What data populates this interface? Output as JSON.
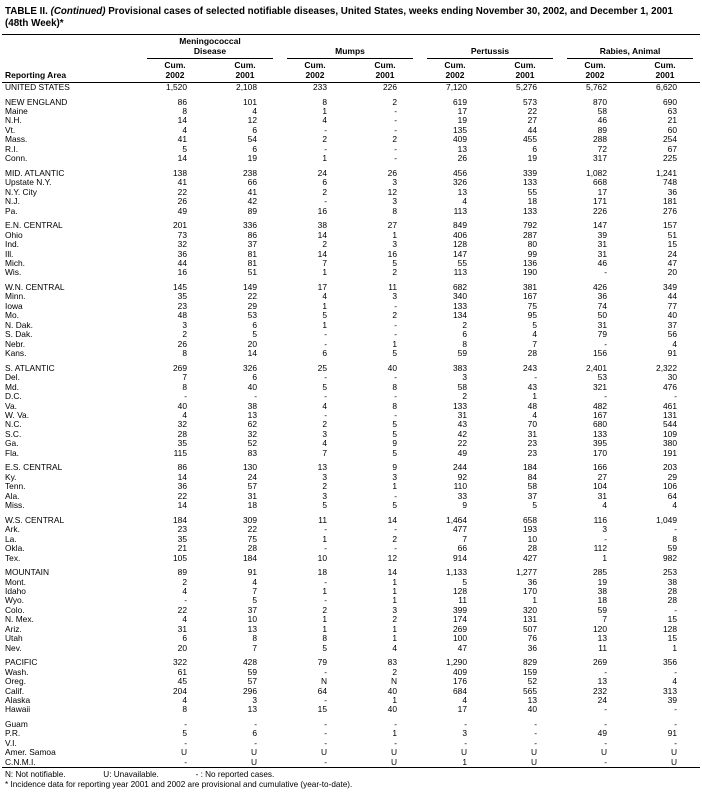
{
  "title": {
    "prefix": "TABLE II.",
    "continued": "(Continued)",
    "rest": "Provisional cases of selected notifiable diseases, United States, weeks ending November 30, 2002, and December 1, 2001 (48th Week)*"
  },
  "table": {
    "header": {
      "reporting_area": "Reporting Area",
      "groups": [
        {
          "label": "Meningococcal Disease"
        },
        {
          "label": "Mumps"
        },
        {
          "label": "Pertussis"
        },
        {
          "label": "Rabies, Animal"
        }
      ],
      "subcols": [
        {
          "top": "Cum.",
          "year": "2002"
        },
        {
          "top": "Cum.",
          "year": "2001"
        },
        {
          "top": "Cum.",
          "year": "2002"
        },
        {
          "top": "Cum.",
          "year": "2001"
        },
        {
          "top": "Cum.",
          "year": "2002"
        },
        {
          "top": "Cum.",
          "year": "2001"
        },
        {
          "top": "Cum.",
          "year": "2002"
        },
        {
          "top": "Cum.",
          "year": "2001"
        }
      ]
    },
    "rows": [
      {
        "area": "UNITED STATES",
        "values": [
          "1,520",
          "2,108",
          "233",
          "226",
          "7,120",
          "5,276",
          "5,762",
          "6,620"
        ],
        "gap": false
      },
      {
        "area": "NEW ENGLAND",
        "values": [
          "86",
          "101",
          "8",
          "2",
          "619",
          "573",
          "870",
          "690"
        ],
        "gap": true
      },
      {
        "area": "Maine",
        "values": [
          "8",
          "4",
          "1",
          "-",
          "17",
          "22",
          "58",
          "63"
        ]
      },
      {
        "area": "N.H.",
        "values": [
          "14",
          "12",
          "4",
          "-",
          "19",
          "27",
          "46",
          "21"
        ]
      },
      {
        "area": "Vt.",
        "values": [
          "4",
          "6",
          "-",
          "-",
          "135",
          "44",
          "89",
          "60"
        ]
      },
      {
        "area": "Mass.",
        "values": [
          "41",
          "54",
          "2",
          "2",
          "409",
          "455",
          "288",
          "254"
        ]
      },
      {
        "area": "R.I.",
        "values": [
          "5",
          "6",
          "-",
          "-",
          "13",
          "6",
          "72",
          "67"
        ]
      },
      {
        "area": "Conn.",
        "values": [
          "14",
          "19",
          "1",
          "-",
          "26",
          "19",
          "317",
          "225"
        ]
      },
      {
        "area": "MID. ATLANTIC",
        "values": [
          "138",
          "238",
          "24",
          "26",
          "456",
          "339",
          "1,082",
          "1,241"
        ],
        "gap": true
      },
      {
        "area": "Upstate N.Y.",
        "values": [
          "41",
          "66",
          "6",
          "3",
          "326",
          "133",
          "668",
          "748"
        ]
      },
      {
        "area": "N.Y. City",
        "values": [
          "22",
          "41",
          "2",
          "12",
          "13",
          "55",
          "17",
          "36"
        ]
      },
      {
        "area": "N.J.",
        "values": [
          "26",
          "42",
          "-",
          "3",
          "4",
          "18",
          "171",
          "181"
        ]
      },
      {
        "area": "Pa.",
        "values": [
          "49",
          "89",
          "16",
          "8",
          "113",
          "133",
          "226",
          "276"
        ]
      },
      {
        "area": "E.N. CENTRAL",
        "values": [
          "201",
          "336",
          "38",
          "27",
          "849",
          "792",
          "147",
          "157"
        ],
        "gap": true
      },
      {
        "area": "Ohio",
        "values": [
          "73",
          "86",
          "14",
          "1",
          "406",
          "287",
          "39",
          "51"
        ]
      },
      {
        "area": "Ind.",
        "values": [
          "32",
          "37",
          "2",
          "3",
          "128",
          "80",
          "31",
          "15"
        ]
      },
      {
        "area": "Ill.",
        "values": [
          "36",
          "81",
          "14",
          "16",
          "147",
          "99",
          "31",
          "24"
        ]
      },
      {
        "area": "Mich.",
        "values": [
          "44",
          "81",
          "7",
          "5",
          "55",
          "136",
          "46",
          "47"
        ]
      },
      {
        "area": "Wis.",
        "values": [
          "16",
          "51",
          "1",
          "2",
          "113",
          "190",
          "-",
          "20"
        ]
      },
      {
        "area": "W.N. CENTRAL",
        "values": [
          "145",
          "149",
          "17",
          "11",
          "682",
          "381",
          "426",
          "349"
        ],
        "gap": true
      },
      {
        "area": "Minn.",
        "values": [
          "35",
          "22",
          "4",
          "3",
          "340",
          "167",
          "36",
          "44"
        ]
      },
      {
        "area": "Iowa",
        "values": [
          "23",
          "29",
          "1",
          "-",
          "133",
          "75",
          "74",
          "77"
        ]
      },
      {
        "area": "Mo.",
        "values": [
          "48",
          "53",
          "5",
          "2",
          "134",
          "95",
          "50",
          "40"
        ]
      },
      {
        "area": "N. Dak.",
        "values": [
          "3",
          "6",
          "1",
          "-",
          "2",
          "5",
          "31",
          "37"
        ]
      },
      {
        "area": "S. Dak.",
        "values": [
          "2",
          "5",
          "-",
          "-",
          "6",
          "4",
          "79",
          "56"
        ]
      },
      {
        "area": "Nebr.",
        "values": [
          "26",
          "20",
          "-",
          "1",
          "8",
          "7",
          "-",
          "4"
        ]
      },
      {
        "area": "Kans.",
        "values": [
          "8",
          "14",
          "6",
          "5",
          "59",
          "28",
          "156",
          "91"
        ]
      },
      {
        "area": "S. ATLANTIC",
        "values": [
          "269",
          "326",
          "25",
          "40",
          "383",
          "243",
          "2,401",
          "2,322"
        ],
        "gap": true
      },
      {
        "area": "Del.",
        "values": [
          "7",
          "6",
          "-",
          "-",
          "3",
          "-",
          "53",
          "30"
        ]
      },
      {
        "area": "Md.",
        "values": [
          "8",
          "40",
          "5",
          "8",
          "58",
          "43",
          "321",
          "476"
        ]
      },
      {
        "area": "D.C.",
        "values": [
          "-",
          "-",
          "-",
          "-",
          "2",
          "1",
          "-",
          "-"
        ]
      },
      {
        "area": "Va.",
        "values": [
          "40",
          "38",
          "4",
          "8",
          "133",
          "48",
          "482",
          "461"
        ]
      },
      {
        "area": "W. Va.",
        "values": [
          "4",
          "13",
          "-",
          "-",
          "31",
          "4",
          "167",
          "131"
        ]
      },
      {
        "area": "N.C.",
        "values": [
          "32",
          "62",
          "2",
          "5",
          "43",
          "70",
          "680",
          "544"
        ]
      },
      {
        "area": "S.C.",
        "values": [
          "28",
          "32",
          "3",
          "5",
          "42",
          "31",
          "133",
          "109"
        ]
      },
      {
        "area": "Ga.",
        "values": [
          "35",
          "52",
          "4",
          "9",
          "22",
          "23",
          "395",
          "380"
        ]
      },
      {
        "area": "Fla.",
        "values": [
          "115",
          "83",
          "7",
          "5",
          "49",
          "23",
          "170",
          "191"
        ]
      },
      {
        "area": "E.S. CENTRAL",
        "values": [
          "86",
          "130",
          "13",
          "9",
          "244",
          "184",
          "166",
          "203"
        ],
        "gap": true
      },
      {
        "area": "Ky.",
        "values": [
          "14",
          "24",
          "3",
          "3",
          "92",
          "84",
          "27",
          "29"
        ]
      },
      {
        "area": "Tenn.",
        "values": [
          "36",
          "57",
          "2",
          "1",
          "110",
          "58",
          "104",
          "106"
        ]
      },
      {
        "area": "Ala.",
        "values": [
          "22",
          "31",
          "3",
          "-",
          "33",
          "37",
          "31",
          "64"
        ]
      },
      {
        "area": "Miss.",
        "values": [
          "14",
          "18",
          "5",
          "5",
          "9",
          "5",
          "4",
          "4"
        ]
      },
      {
        "area": "W.S. CENTRAL",
        "values": [
          "184",
          "309",
          "11",
          "14",
          "1,464",
          "658",
          "116",
          "1,049"
        ],
        "gap": true
      },
      {
        "area": "Ark.",
        "values": [
          "23",
          "22",
          "-",
          "-",
          "477",
          "193",
          "3",
          "-"
        ]
      },
      {
        "area": "La.",
        "values": [
          "35",
          "75",
          "1",
          "2",
          "7",
          "10",
          "-",
          "8"
        ]
      },
      {
        "area": "Okla.",
        "values": [
          "21",
          "28",
          "-",
          "-",
          "66",
          "28",
          "112",
          "59"
        ]
      },
      {
        "area": "Tex.",
        "values": [
          "105",
          "184",
          "10",
          "12",
          "914",
          "427",
          "1",
          "982"
        ]
      },
      {
        "area": "MOUNTAIN",
        "values": [
          "89",
          "91",
          "18",
          "14",
          "1,133",
          "1,277",
          "285",
          "253"
        ],
        "gap": true
      },
      {
        "area": "Mont.",
        "values": [
          "2",
          "4",
          "-",
          "1",
          "5",
          "36",
          "19",
          "38"
        ]
      },
      {
        "area": "Idaho",
        "values": [
          "4",
          "7",
          "1",
          "1",
          "128",
          "170",
          "38",
          "28"
        ]
      },
      {
        "area": "Wyo.",
        "values": [
          "-",
          "5",
          "-",
          "1",
          "11",
          "1",
          "18",
          "28"
        ]
      },
      {
        "area": "Colo.",
        "values": [
          "22",
          "37",
          "2",
          "3",
          "399",
          "320",
          "59",
          "-"
        ]
      },
      {
        "area": "N. Mex.",
        "values": [
          "4",
          "10",
          "1",
          "2",
          "174",
          "131",
          "7",
          "15"
        ]
      },
      {
        "area": "Ariz.",
        "values": [
          "31",
          "13",
          "1",
          "1",
          "269",
          "507",
          "120",
          "128"
        ]
      },
      {
        "area": "Utah",
        "values": [
          "6",
          "8",
          "8",
          "1",
          "100",
          "76",
          "13",
          "15"
        ]
      },
      {
        "area": "Nev.",
        "values": [
          "20",
          "7",
          "5",
          "4",
          "47",
          "36",
          "11",
          "1"
        ]
      },
      {
        "area": "PACIFIC",
        "values": [
          "322",
          "428",
          "79",
          "83",
          "1,290",
          "829",
          "269",
          "356"
        ],
        "gap": true
      },
      {
        "area": "Wash.",
        "values": [
          "61",
          "59",
          "-",
          "2",
          "409",
          "159",
          "-",
          "-"
        ]
      },
      {
        "area": "Oreg.",
        "values": [
          "45",
          "57",
          "N",
          "N",
          "176",
          "52",
          "13",
          "4"
        ]
      },
      {
        "area": "Calif.",
        "values": [
          "204",
          "296",
          "64",
          "40",
          "684",
          "565",
          "232",
          "313"
        ]
      },
      {
        "area": "Alaska",
        "values": [
          "4",
          "3",
          "-",
          "1",
          "4",
          "13",
          "24",
          "39"
        ]
      },
      {
        "area": "Hawaii",
        "values": [
          "8",
          "13",
          "15",
          "40",
          "17",
          "40",
          "-",
          "-"
        ]
      },
      {
        "area": "Guam",
        "values": [
          "-",
          "-",
          "-",
          "-",
          "-",
          "-",
          "-",
          "-"
        ],
        "gap": true
      },
      {
        "area": "P.R.",
        "values": [
          "5",
          "6",
          "-",
          "1",
          "3",
          "-",
          "49",
          "91"
        ]
      },
      {
        "area": "V.I.",
        "values": [
          "-",
          "-",
          "-",
          "-",
          "-",
          "-",
          "-",
          "-"
        ]
      },
      {
        "area": "Amer. Samoa",
        "values": [
          "U",
          "U",
          "U",
          "U",
          "U",
          "U",
          "U",
          "U"
        ]
      },
      {
        "area": "C.N.M.I.",
        "values": [
          "-",
          "U",
          "-",
          "U",
          "1",
          "U",
          "-",
          "U"
        ]
      }
    ]
  },
  "footnotes": {
    "not_notifiable": "N: Not notifiable.",
    "unavailable": "U: Unavailable.",
    "no_cases": "- : No reported cases.",
    "incidence": "* Incidence data for reporting year 2001 and 2002 are provisional and cumulative (year-to-date)."
  }
}
